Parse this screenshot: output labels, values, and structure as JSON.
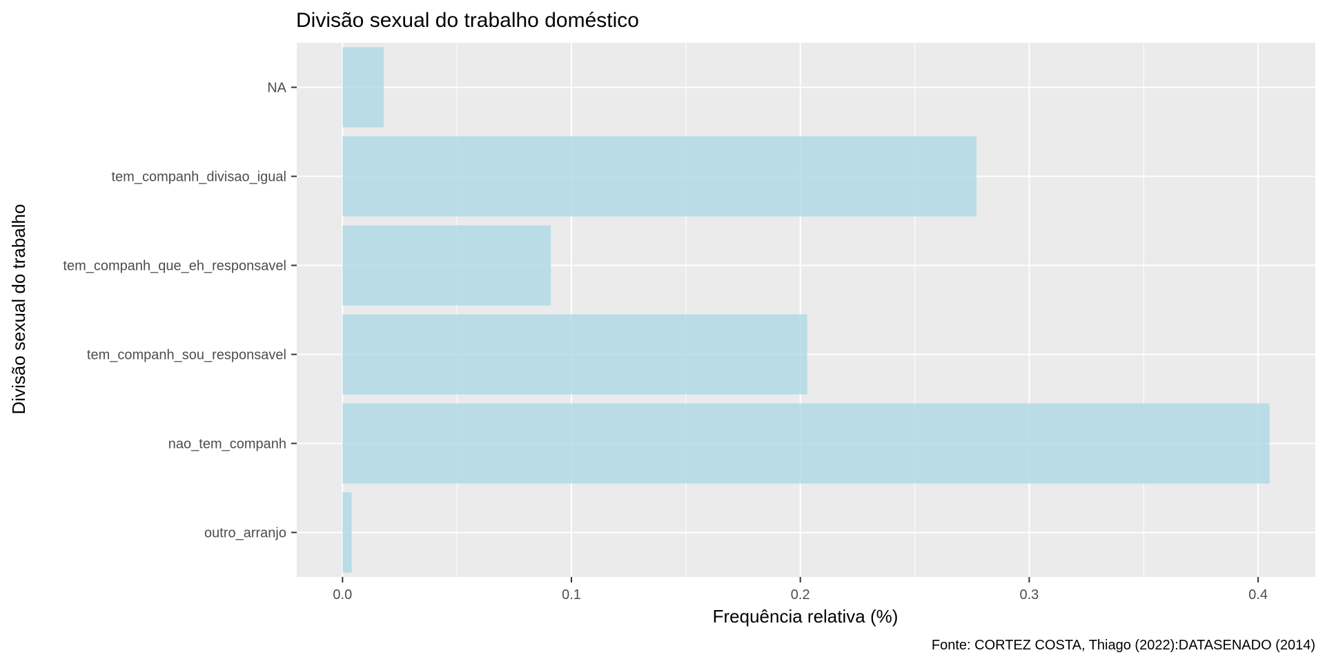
{
  "chart_data": {
    "type": "bar",
    "orientation": "horizontal",
    "title": "Divisão sexual do trabalho doméstico",
    "xlabel": "Frequência relativa (%)",
    "ylabel": "Divisão sexual do trabalho",
    "caption": "Fonte: CORTEZ COSTA, Thiago (2022):DATASENADO (2014)",
    "categories": [
      "NA",
      "tem_companh_divisao_igual",
      "tem_companh_que_eh_responsavel",
      "tem_companh_sou_responsavel",
      "nao_tem_companh",
      "outro_arranjo"
    ],
    "values": [
      0.018,
      0.277,
      0.091,
      0.203,
      0.405,
      0.004
    ],
    "xlim": [
      -0.02,
      0.425
    ],
    "xticks": [
      0.0,
      0.1,
      0.2,
      0.3,
      0.4
    ],
    "xtick_labels": [
      "0.0",
      "0.1",
      "0.2",
      "0.3",
      "0.4"
    ],
    "grid": true,
    "bar_color": "#add8e6",
    "panel_color": "#ebebeb",
    "grid_color": "#ffffff"
  }
}
